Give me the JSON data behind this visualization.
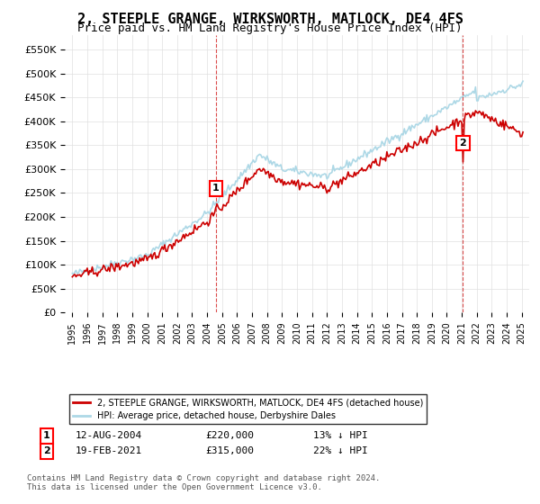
{
  "title": "2, STEEPLE GRANGE, WIRKSWORTH, MATLOCK, DE4 4FS",
  "subtitle": "Price paid vs. HM Land Registry's House Price Index (HPI)",
  "title_fontsize": 11,
  "subtitle_fontsize": 9,
  "ylim": [
    0,
    575000
  ],
  "yticks": [
    0,
    50000,
    100000,
    150000,
    200000,
    250000,
    300000,
    350000,
    400000,
    450000,
    500000,
    550000
  ],
  "ytick_labels": [
    "£0",
    "£50K",
    "£100K",
    "£150K",
    "£200K",
    "£250K",
    "£300K",
    "£350K",
    "£400K",
    "£450K",
    "£500K",
    "£550K"
  ],
  "hpi_color": "#add8e6",
  "price_color": "#cc0000",
  "marker1_date_idx": 118,
  "marker2_date_idx": 313,
  "sale1_label": "1",
  "sale2_label": "2",
  "sale1_date": "12-AUG-2004",
  "sale1_price": "£220,000",
  "sale1_hpi": "13% ↓ HPI",
  "sale2_date": "19-FEB-2021",
  "sale2_price": "£315,000",
  "sale2_hpi": "22% ↓ HPI",
  "legend_line1": "2, STEEPLE GRANGE, WIRKSWORTH, MATLOCK, DE4 4FS (detached house)",
  "legend_line2": "HPI: Average price, detached house, Derbyshire Dales",
  "footnote": "Contains HM Land Registry data © Crown copyright and database right 2024.\nThis data is licensed under the Open Government Licence v3.0.",
  "background_color": "#ffffff",
  "grid_color": "#e0e0e0"
}
